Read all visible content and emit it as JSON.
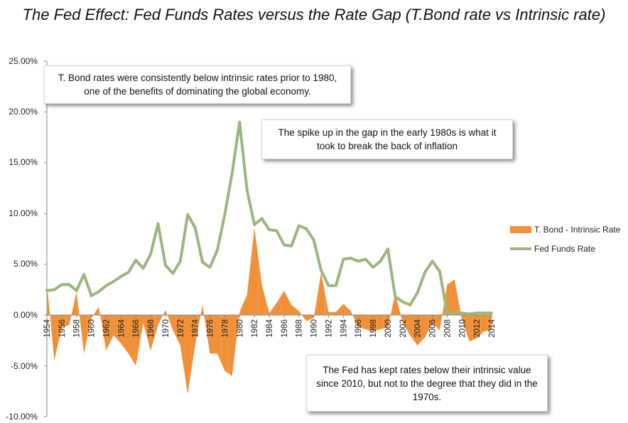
{
  "chart_data": {
    "type": "area",
    "title": "The Fed Effect: Fed Funds Rates versus the Rate Gap (T.Bond rate vs Intrinsic rate)",
    "xlabel": "",
    "ylabel": "",
    "ylim": [
      -10,
      25
    ],
    "yticks": [
      "25.00%",
      "20.00%",
      "15.00%",
      "10.00%",
      "5.00%",
      "0.00%",
      "-5.00%",
      "-10.00%"
    ],
    "xticks": [
      "1954",
      "1956",
      "1958",
      "1960",
      "1962",
      "1964",
      "1966",
      "1968",
      "1970",
      "1972",
      "1974",
      "1976",
      "1978",
      "1980",
      "1982",
      "1984",
      "1986",
      "1988",
      "1990",
      "1992",
      "1994",
      "1996",
      "1998",
      "2000",
      "2002",
      "2004",
      "2006",
      "2008",
      "2010",
      "2012",
      "2014"
    ],
    "x": [
      1954,
      1955,
      1956,
      1957,
      1958,
      1959,
      1960,
      1961,
      1962,
      1963,
      1964,
      1965,
      1966,
      1967,
      1968,
      1969,
      1970,
      1971,
      1972,
      1973,
      1974,
      1975,
      1976,
      1977,
      1978,
      1979,
      1980,
      1981,
      1982,
      1983,
      1984,
      1985,
      1986,
      1987,
      1988,
      1989,
      1990,
      1991,
      1992,
      1993,
      1994,
      1995,
      1996,
      1997,
      1998,
      1999,
      2000,
      2001,
      2002,
      2003,
      2004,
      2005,
      2006,
      2007,
      2008,
      2009,
      2010,
      2011,
      2012,
      2013,
      2014
    ],
    "series": [
      {
        "name": "T. Bond - Intrinsic Rate",
        "style": "area",
        "color": "#f0913a",
        "values": [
          3.2,
          -4.5,
          -1.2,
          -1.0,
          2.3,
          -3.8,
          -0.3,
          0.8,
          -3.5,
          -2.0,
          -2.8,
          -3.8,
          -5.0,
          -0.8,
          -3.5,
          -1.0,
          0.5,
          -1.5,
          -3.0,
          -7.8,
          -3.0,
          1.0,
          -3.8,
          -3.8,
          -5.5,
          -6.0,
          0.3,
          2.0,
          8.6,
          3.0,
          0.2,
          1.2,
          2.4,
          1.0,
          0.4,
          -0.6,
          -0.3,
          4.2,
          0.3,
          0.3,
          1.1,
          0.4,
          -1.2,
          -1.4,
          -1.6,
          -1.4,
          -1.2,
          2.1,
          -0.7,
          -2.0,
          -3.0,
          -2.2,
          -0.8,
          -1.5,
          3.0,
          3.5,
          -0.4,
          -2.6,
          -2.3,
          -1.6,
          -1.5
        ]
      },
      {
        "name": "Fed Funds Rate",
        "style": "line",
        "color": "#9bb67b",
        "values": [
          2.4,
          2.5,
          3.0,
          3.0,
          2.4,
          4.0,
          1.9,
          2.3,
          2.9,
          3.3,
          3.8,
          4.2,
          5.4,
          4.6,
          6.0,
          9.0,
          4.9,
          4.1,
          5.3,
          9.9,
          8.6,
          5.2,
          4.7,
          6.4,
          9.9,
          14.0,
          19.0,
          12.3,
          8.9,
          9.5,
          8.4,
          8.3,
          6.9,
          6.8,
          8.8,
          8.5,
          7.4,
          4.4,
          2.9,
          2.9,
          5.5,
          5.6,
          5.3,
          5.5,
          4.7,
          5.3,
          6.5,
          1.8,
          1.3,
          1.0,
          2.2,
          4.2,
          5.3,
          4.3,
          0.2,
          0.2,
          0.2,
          0.1,
          0.2,
          0.2,
          0.2
        ]
      }
    ],
    "legend_position": "right",
    "annotations": [
      "T. Bond rates were consistently below intrinsic rates prior to 1980, one of the benefits of dominating the global economy.",
      "The spike up in the gap in the early 1980s is what it took to break the back of inflation",
      "The Fed has kept rates below their intrinsic value since 2010, but not to the degree that they did in the 1970s."
    ]
  }
}
